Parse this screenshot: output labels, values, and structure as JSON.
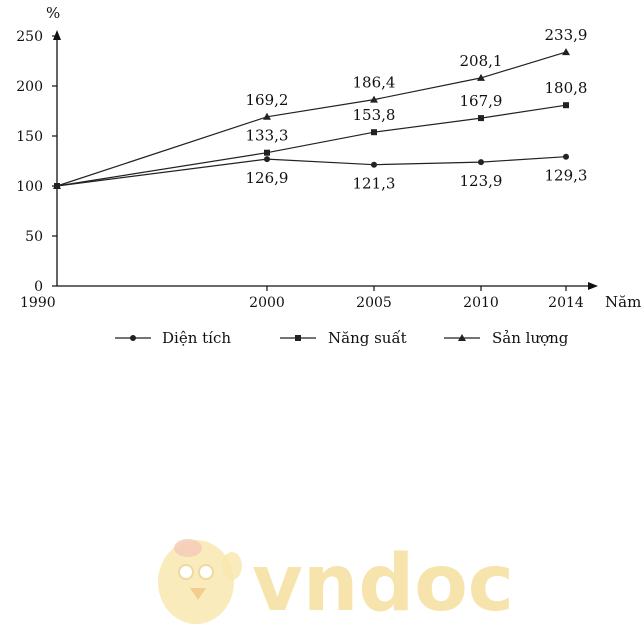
{
  "chart_data": {
    "type": "line",
    "ylabel": "%",
    "xlabel": "Năm",
    "x": [
      1990,
      2000,
      2005,
      2010,
      2014
    ],
    "ylim": [
      0,
      250
    ],
    "yticks": [
      0,
      50,
      100,
      150,
      200,
      250
    ],
    "grid": false,
    "legend_position": "bottom",
    "series": [
      {
        "name": "Diện tích",
        "marker": "circle",
        "values": [
          100,
          126.9,
          121.3,
          123.9,
          129.3
        ],
        "labels": [
          "",
          "126,9",
          "121,3",
          "123,9",
          "129,3"
        ]
      },
      {
        "name": "Năng suất",
        "marker": "square",
        "values": [
          100,
          133.3,
          153.8,
          167.9,
          180.8
        ],
        "labels": [
          "",
          "133,3",
          "153,8",
          "167,9",
          "180,8"
        ]
      },
      {
        "name": "Sản lượng",
        "marker": "triangle",
        "values": [
          100,
          169.2,
          186.4,
          208.1,
          233.9
        ],
        "labels": [
          "",
          "169,2",
          "186,4",
          "208,1",
          "233,9"
        ]
      }
    ]
  },
  "watermark": {
    "text": "vndoc",
    "color": "#f7e2a4"
  }
}
